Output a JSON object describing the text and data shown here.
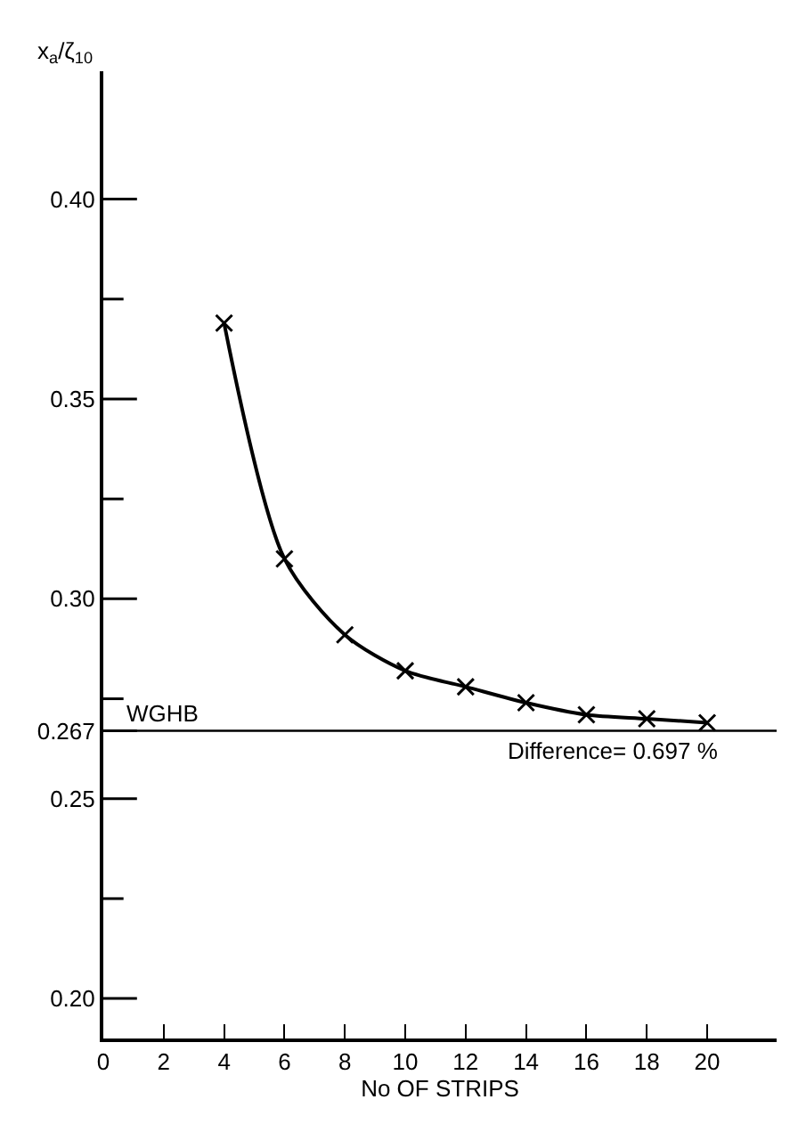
{
  "chart_data": {
    "type": "line",
    "xlabel": "No OF STRIPS",
    "ylabel": "x$_{a}$/ζ$_{10}$",
    "x": [
      4,
      6,
      8,
      10,
      12,
      14,
      16,
      18,
      20
    ],
    "series": [
      {
        "color": "#000000",
        "values": [
          0.369,
          0.31,
          0.291,
          0.282,
          0.278,
          0.274,
          0.271,
          0.27,
          0.269
        ]
      }
    ],
    "xlim": [
      0,
      22.3
    ],
    "xticks": [
      0,
      2,
      4,
      6,
      8,
      10,
      12,
      14,
      16,
      18,
      20
    ],
    "ylim": [
      0.19,
      0.432
    ],
    "yticks": [
      {
        "value": 0.2,
        "label": "0.20"
      },
      {
        "value": 0.225,
        "label": null
      },
      {
        "value": 0.25,
        "label": "0.25"
      },
      {
        "value": 0.267,
        "label": "0.267"
      },
      {
        "value": 0.275,
        "label": null
      },
      {
        "value": 0.3,
        "label": "0.30"
      },
      {
        "value": 0.325,
        "label": null
      },
      {
        "value": 0.35,
        "label": "0.35"
      },
      {
        "value": 0.375,
        "label": null
      },
      {
        "value": 0.4,
        "label": "0.40"
      }
    ],
    "ref_lines": [
      {
        "axis": "y",
        "value": 0.267,
        "label": "WGHB",
        "color": "#000000",
        "line_style": "solid"
      }
    ],
    "annotations": [
      {
        "text": "Difference= 0.697 %",
        "x": 20.5,
        "y": 0.267
      }
    ],
    "marker": "cross",
    "line_style": "solid"
  }
}
